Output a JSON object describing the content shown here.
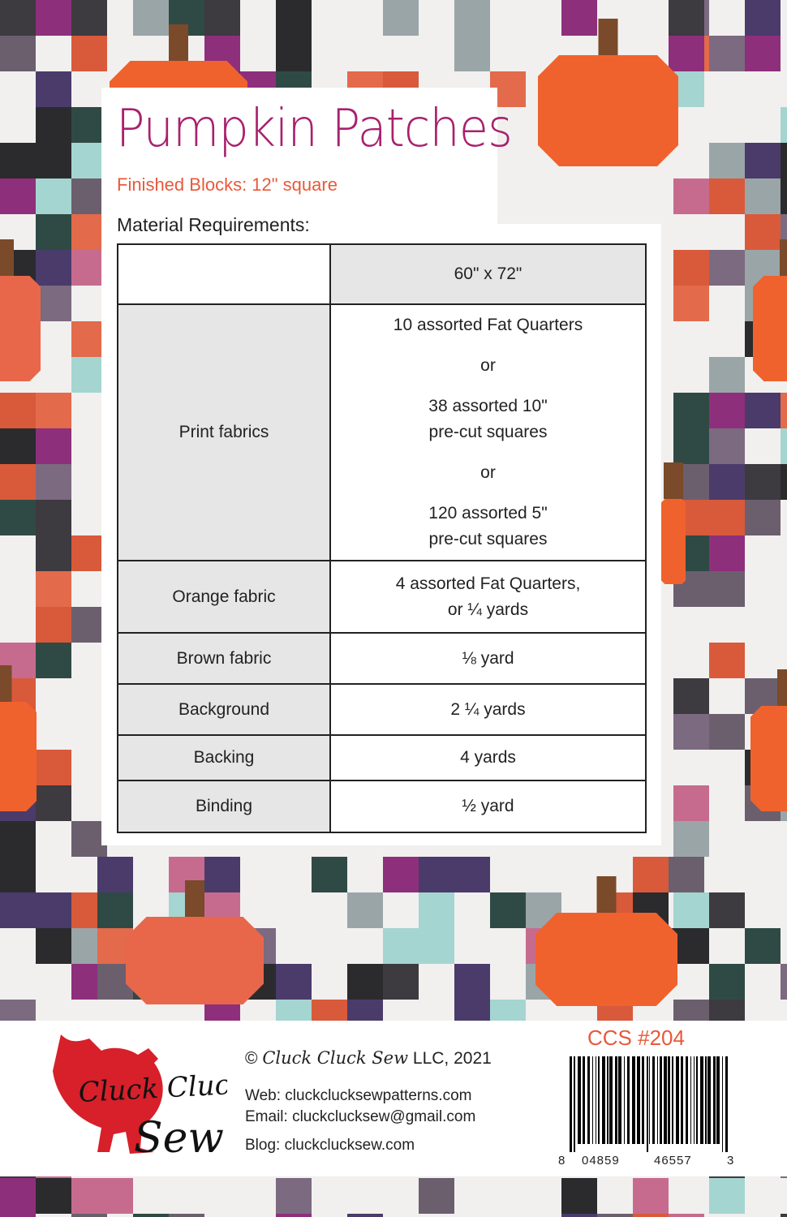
{
  "title": "Pumpkin Patches",
  "subtitle": "Finished Blocks:  12\" square",
  "materials_heading": "Material Requirements:",
  "table": {
    "header": [
      "",
      "60\" x 72\""
    ],
    "rows": [
      {
        "label": "Print fabrics",
        "lines": [
          "10 assorted Fat Quarters",
          "or",
          "38 assorted 10\"",
          "pre-cut squares",
          "or",
          "120 assorted 5\"",
          "pre-cut squares"
        ]
      },
      {
        "label": "Orange fabric",
        "lines": [
          "4 assorted Fat Quarters,",
          "or ¼ yards"
        ]
      },
      {
        "label": "Brown fabric",
        "lines": [
          "⅛ yard"
        ]
      },
      {
        "label": "Background",
        "lines": [
          "2 ¼ yards"
        ]
      },
      {
        "label": "Backing",
        "lines": [
          "4 yards"
        ]
      },
      {
        "label": "Binding",
        "lines": [
          "½ yard"
        ]
      }
    ]
  },
  "footer": {
    "logo_text": "Cluck Cluck Sew",
    "copyright_symbol": "©",
    "copyright_brand": "Cluck Cluck Sew",
    "copyright_rest": " LLC, 2021",
    "web": "Web: cluckclucksewpatterns.com",
    "email": "Email: cluckclucksew@gmail.com",
    "blog": "Blog:  cluckclucksew.com",
    "product_code": "CCS #204",
    "barcode_digits": [
      "8",
      "04859",
      "46557",
      "3"
    ]
  },
  "colors": {
    "title": "#a8216e",
    "accent": "#e8593a",
    "logo_red": "#d7202a",
    "pumpkin": "#f0622d",
    "stem": "#7a4a2a"
  }
}
